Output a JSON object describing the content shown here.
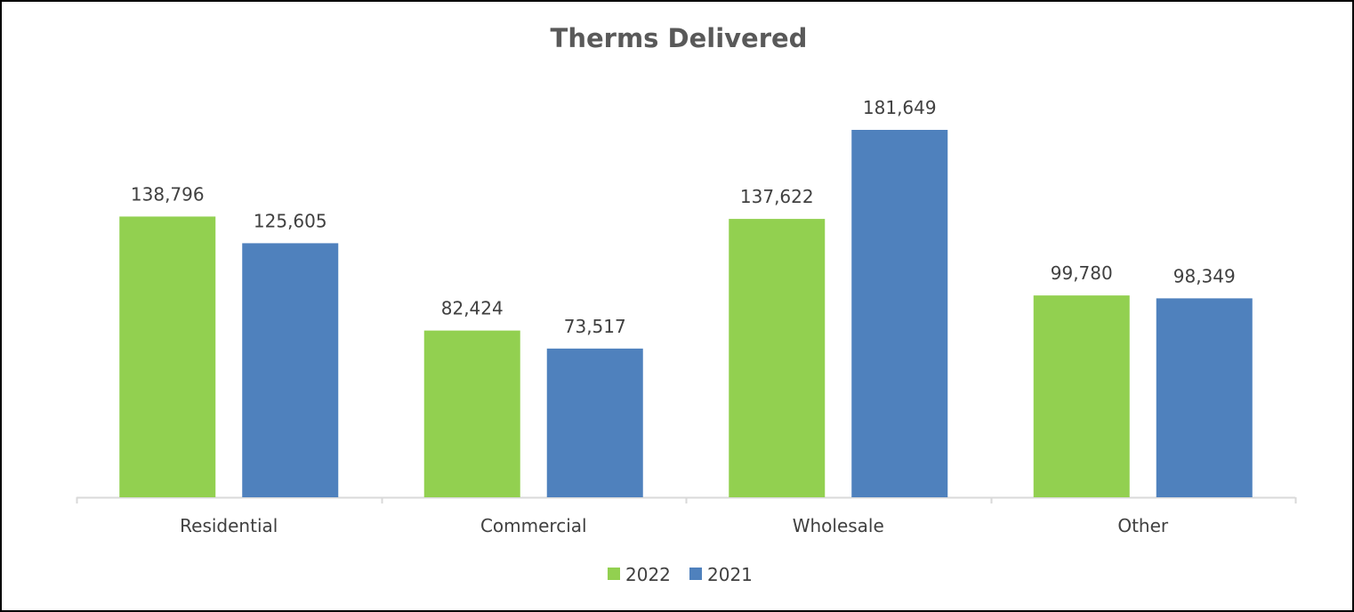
{
  "chart_data": {
    "type": "bar",
    "title": "Therms Delivered",
    "xlabel": "",
    "ylabel": "",
    "categories": [
      "Residential",
      "Commercial",
      "Wholesale",
      "Other"
    ],
    "series": [
      {
        "name": "2022",
        "color": "#92D050",
        "values": [
          138796,
          82424,
          137622,
          99780
        ],
        "labels": [
          "138,796",
          "82,424",
          "137,622",
          "99,780"
        ]
      },
      {
        "name": "2021",
        "color": "#4F81BD",
        "values": [
          125605,
          73517,
          181649,
          98349
        ],
        "labels": [
          "125,605",
          "73,517",
          "181,649",
          "98,349"
        ]
      }
    ],
    "ylim": [
      0,
      200000
    ],
    "grid": false,
    "legend_position": "bottom"
  }
}
